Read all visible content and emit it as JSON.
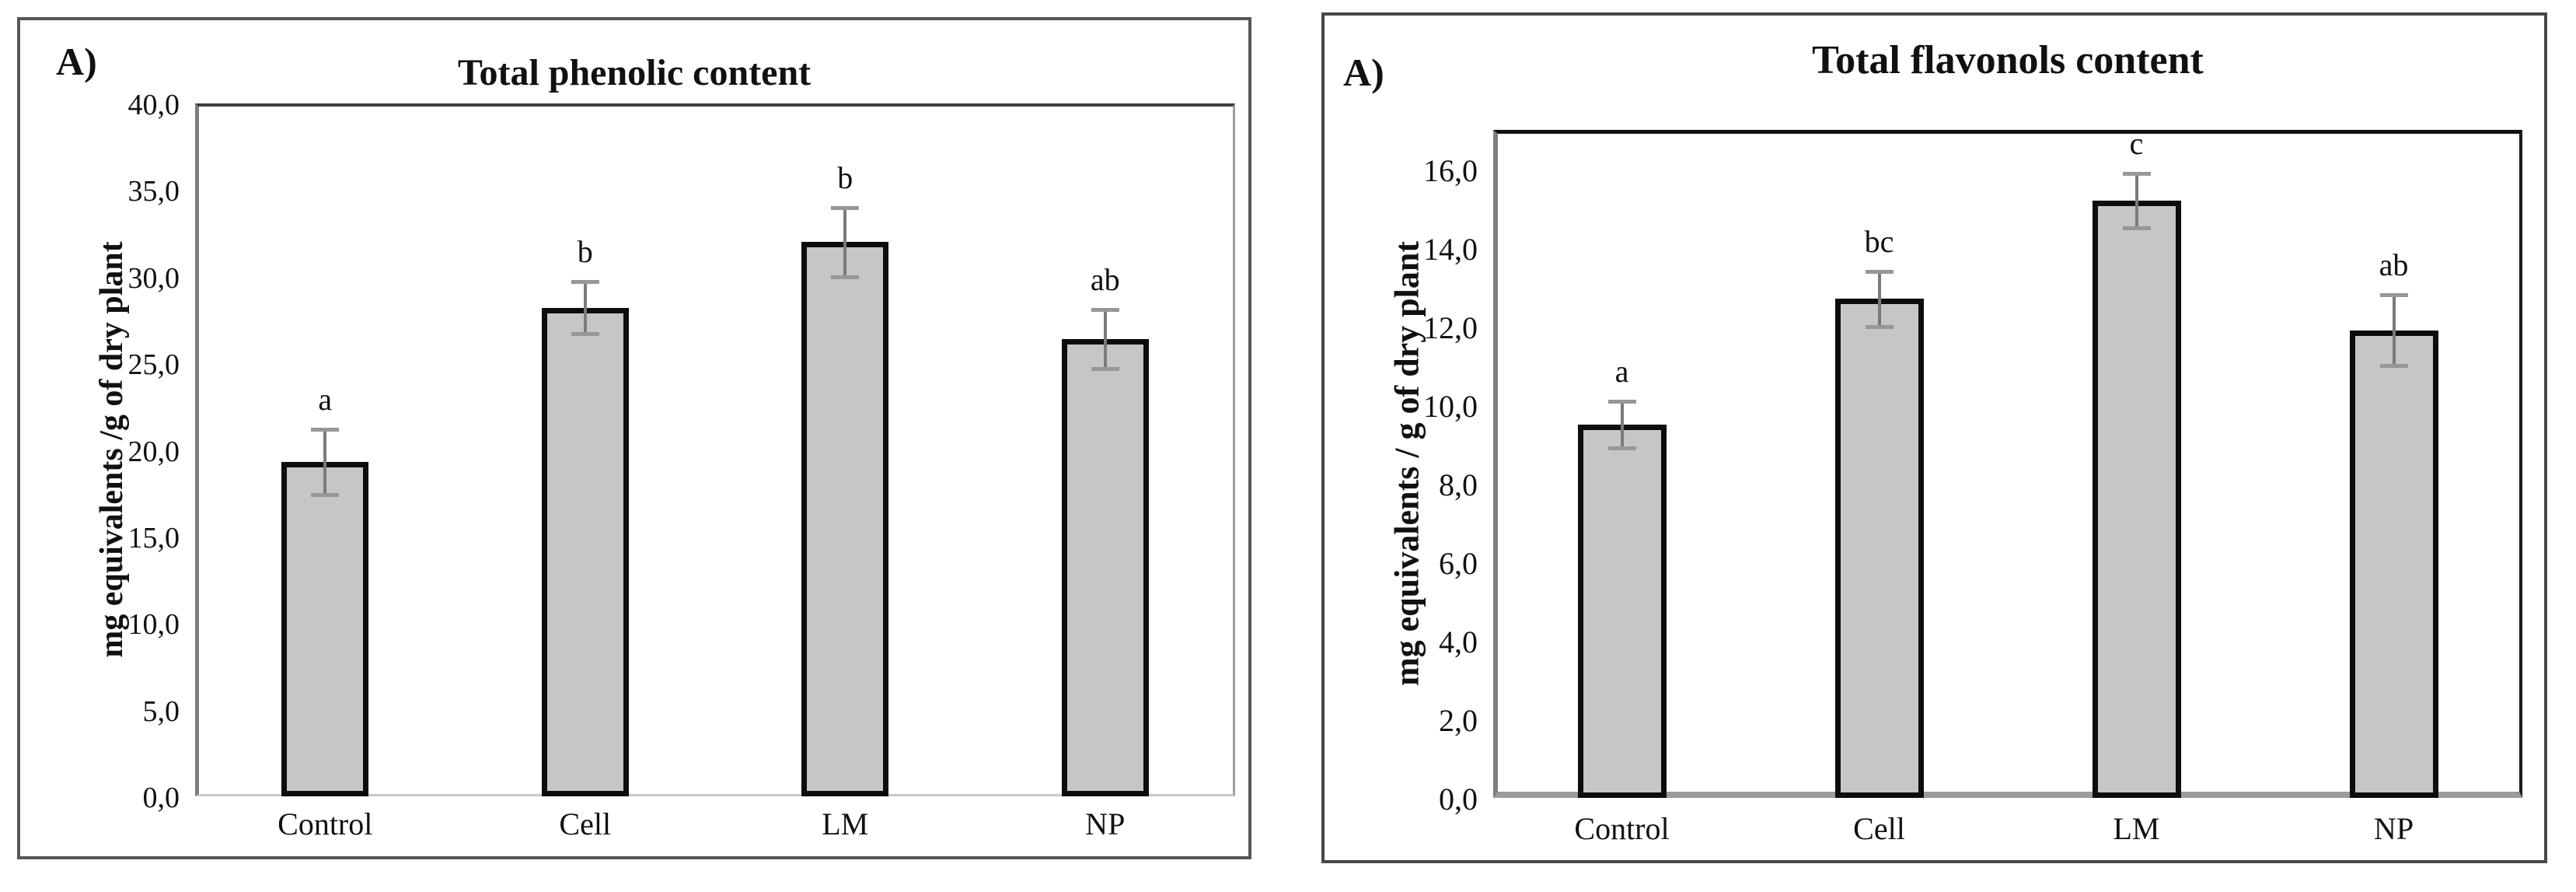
{
  "figure": {
    "background_color": "#ffffff",
    "bar_fill_color": "#c6c6c6",
    "bar_border_color": "#0d0d0d",
    "error_bar_color": "#7a7a7a",
    "error_cap_color": "#979797"
  },
  "chart_data": [
    {
      "type": "bar",
      "panel_label": "A)",
      "title": "Total phenolic content",
      "ylabel": "mg equivalents /g of dry plant",
      "xlabel": "",
      "categories": [
        "Control",
        "Cell",
        "LM",
        "NP"
      ],
      "values": [
        19.3,
        28.2,
        32.0,
        26.4
      ],
      "error_bars": [
        1.9,
        1.5,
        2.0,
        1.7
      ],
      "significance_letters": [
        "a",
        "b",
        "b",
        "ab"
      ],
      "ylim": [
        0,
        40
      ],
      "y_axis_top": 40,
      "ytick_values": [
        0,
        5,
        10,
        15,
        20,
        25,
        30,
        35,
        40
      ],
      "ytick_labels": [
        "0,0",
        "5,0",
        "10,0",
        "15,0",
        "20,0",
        "25,0",
        "30,0",
        "35,0",
        "40,0"
      ],
      "grid": false,
      "legend": null
    },
    {
      "type": "bar",
      "panel_label": "A)",
      "title": "Total flavonols content",
      "ylabel": "mg equivalents / g of dry plant",
      "xlabel": "",
      "categories": [
        "Control",
        "Cell",
        "LM",
        "NP"
      ],
      "values": [
        9.5,
        12.7,
        15.2,
        11.9
      ],
      "error_bars": [
        0.6,
        0.7,
        0.7,
        0.9
      ],
      "significance_letters": [
        "a",
        "bc",
        "c",
        "ab"
      ],
      "ylim": [
        0,
        16
      ],
      "y_axis_top": 17,
      "ytick_values": [
        0,
        2,
        4,
        6,
        8,
        10,
        12,
        14,
        16
      ],
      "ytick_labels": [
        "0,0",
        "2,0",
        "4,0",
        "6,0",
        "8,0",
        "10,0",
        "12,0",
        "14,0",
        "16,0"
      ],
      "grid": false,
      "legend": null
    }
  ]
}
